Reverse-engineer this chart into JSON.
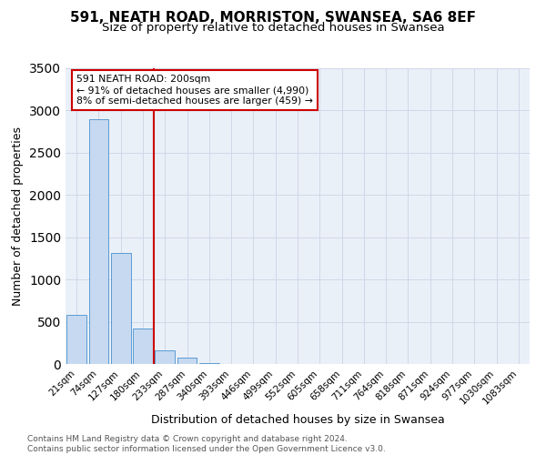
{
  "title": "591, NEATH ROAD, MORRISTON, SWANSEA, SA6 8EF",
  "subtitle": "Size of property relative to detached houses in Swansea",
  "xlabel": "Distribution of detached houses by size in Swansea",
  "ylabel": "Number of detached properties",
  "bar_labels": [
    "21sqm",
    "74sqm",
    "127sqm",
    "180sqm",
    "233sqm",
    "287sqm",
    "340sqm",
    "393sqm",
    "446sqm",
    "499sqm",
    "552sqm",
    "605sqm",
    "658sqm",
    "711sqm",
    "764sqm",
    "818sqm",
    "871sqm",
    "924sqm",
    "977sqm",
    "1030sqm",
    "1083sqm"
  ],
  "bar_values": [
    580,
    2900,
    1310,
    415,
    165,
    75,
    10,
    5,
    5,
    5,
    0,
    0,
    0,
    0,
    0,
    0,
    0,
    0,
    0,
    0,
    0
  ],
  "bar_color": "#c6d9f0",
  "bar_edge_color": "#5b9bd5",
  "vline_color": "#cc0000",
  "vline_pos": 3.5,
  "annotation_text": "591 NEATH ROAD: 200sqm\n← 91% of detached houses are smaller (4,990)\n8% of semi-detached houses are larger (459) →",
  "annotation_box_color": "#ffffff",
  "annotation_box_edge": "#cc0000",
  "grid_color": "#d0d8e8",
  "background_color": "#eaf0f8",
  "footer_line1": "Contains HM Land Registry data © Crown copyright and database right 2024.",
  "footer_line2": "Contains public sector information licensed under the Open Government Licence v3.0.",
  "ylim": [
    0,
    3500
  ],
  "yticks": [
    0,
    500,
    1000,
    1500,
    2000,
    2500,
    3000,
    3500
  ],
  "title_fontsize": 11,
  "subtitle_fontsize": 9.5,
  "ylabel_fontsize": 9,
  "xlabel_fontsize": 9,
  "tick_fontsize": 7.5,
  "footer_fontsize": 6.5,
  "footer_color": "#555555"
}
